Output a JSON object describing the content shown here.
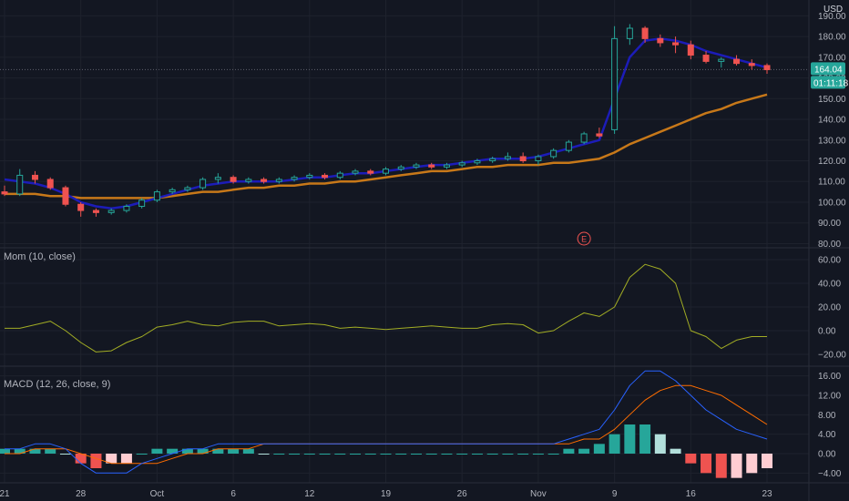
{
  "chart_data": {
    "type": "candlestick",
    "currency": "USD",
    "x_tick_labels": [
      "21",
      "28",
      "Oct",
      "6",
      "12",
      "19",
      "26",
      "Nov",
      "9",
      "16",
      "23"
    ],
    "x_tick_index": [
      0,
      5,
      10,
      15,
      20,
      25,
      30,
      35,
      40,
      45,
      50
    ],
    "price_axis": {
      "range": [
        78,
        195
      ],
      "ticks": [
        190,
        180,
        170,
        160,
        150,
        140,
        130,
        120,
        110,
        100,
        90,
        80
      ],
      "tick_labels": [
        "190.00",
        "180.00",
        "170.00",
        "160.00",
        "150.00",
        "140.00",
        "130.00",
        "120.00",
        "110.00",
        "100.00",
        "90.00",
        "80.00"
      ]
    },
    "last_price": {
      "value": 164.04,
      "label": "164.04",
      "countdown": "01:11:18",
      "color": "#26a69a"
    },
    "candles": [
      [
        105,
        108,
        103,
        104
      ],
      [
        104,
        116,
        103,
        113
      ],
      [
        113,
        115,
        109,
        111
      ],
      [
        111,
        112,
        106,
        107
      ],
      [
        107,
        108,
        98,
        99
      ],
      [
        99,
        100,
        93,
        96
      ],
      [
        96,
        97,
        93,
        95
      ],
      [
        95,
        97,
        94,
        96
      ],
      [
        96,
        99,
        95,
        98
      ],
      [
        98,
        102,
        97,
        101
      ],
      [
        101,
        106,
        100,
        105
      ],
      [
        105,
        107,
        104,
        106
      ],
      [
        106,
        108,
        105,
        107
      ],
      [
        107,
        112,
        106,
        111
      ],
      [
        111,
        114,
        109,
        112
      ],
      [
        112,
        113,
        109,
        110
      ],
      [
        110,
        112,
        109,
        111
      ],
      [
        111,
        112,
        109,
        110
      ],
      [
        110,
        112,
        109,
        111
      ],
      [
        111,
        113,
        110,
        112
      ],
      [
        112,
        114,
        111,
        113
      ],
      [
        113,
        114,
        111,
        112
      ],
      [
        112,
        115,
        111,
        114
      ],
      [
        114,
        116,
        113,
        115
      ],
      [
        115,
        116,
        113,
        114
      ],
      [
        114,
        117,
        113,
        116
      ],
      [
        116,
        118,
        115,
        117
      ],
      [
        117,
        119,
        116,
        118
      ],
      [
        118,
        119,
        116,
        117
      ],
      [
        117,
        119,
        116,
        118
      ],
      [
        118,
        120,
        117,
        119
      ],
      [
        119,
        121,
        118,
        120
      ],
      [
        120,
        122,
        119,
        121
      ],
      [
        121,
        124,
        120,
        122
      ],
      [
        122,
        124,
        119,
        120
      ],
      [
        120,
        123,
        118,
        122
      ],
      [
        122,
        126,
        121,
        125
      ],
      [
        125,
        130,
        124,
        129
      ],
      [
        129,
        134,
        128,
        133
      ],
      [
        133,
        136,
        131,
        132
      ],
      [
        135,
        185,
        133,
        179
      ],
      [
        179,
        186,
        176,
        184
      ],
      [
        184,
        185,
        177,
        179
      ],
      [
        179,
        181,
        175,
        177
      ],
      [
        177,
        180,
        172,
        176
      ],
      [
        176,
        178,
        169,
        171
      ],
      [
        171,
        173,
        167,
        168
      ],
      [
        168,
        170,
        165,
        169
      ],
      [
        169,
        171,
        166,
        167
      ],
      [
        167,
        169,
        164,
        166
      ],
      [
        166,
        167,
        162,
        164
      ]
    ],
    "series": [
      {
        "type": "line",
        "pane": "price",
        "color": "#1c1cb8",
        "values": [
          111,
          110,
          109,
          107,
          104,
          100,
          98,
          97,
          98,
          100,
          102,
          104,
          106,
          108,
          109,
          110,
          110,
          110,
          110,
          111,
          112,
          112,
          113,
          114,
          114,
          115,
          116,
          117,
          118,
          118,
          119,
          120,
          121,
          121,
          121,
          122,
          124,
          126,
          128,
          130,
          150,
          170,
          178,
          179,
          178,
          176,
          173,
          171,
          169,
          167,
          165
        ]
      },
      {
        "type": "line",
        "pane": "price",
        "color": "#c77819",
        "values": [
          104,
          104,
          104,
          103,
          103,
          102,
          102,
          102,
          102,
          102,
          102,
          103,
          104,
          105,
          105,
          106,
          107,
          107,
          108,
          108,
          109,
          109,
          110,
          110,
          111,
          112,
          113,
          114,
          115,
          115,
          116,
          117,
          117,
          118,
          118,
          118,
          119,
          119,
          120,
          121,
          124,
          128,
          131,
          134,
          137,
          140,
          143,
          145,
          148,
          150,
          152
        ]
      },
      {
        "name": "Mom (10, close)",
        "type": "line",
        "pane": "momentum",
        "color": "#a2ad24",
        "values": [
          2,
          2,
          5,
          8,
          0,
          -10,
          -18,
          -17,
          -10,
          -5,
          3,
          5,
          8,
          5,
          4,
          7,
          8,
          8,
          4,
          5,
          6,
          5,
          2,
          3,
          2,
          1,
          2,
          3,
          4,
          3,
          2,
          2,
          5,
          6,
          5,
          -2,
          0,
          8,
          15,
          12,
          20,
          45,
          56,
          52,
          40,
          0,
          -5,
          -15,
          -8,
          -5,
          -5
        ]
      }
    ],
    "momentum_axis": {
      "range": [
        -30,
        70
      ],
      "ticks": [
        60,
        40,
        20,
        0,
        -20
      ],
      "tick_labels": [
        "60.00",
        "40.00",
        "20.00",
        "0.00",
        "−20.00"
      ]
    },
    "macd": {
      "name": "MACD (12, 26, close, 9)",
      "macd_line": {
        "color": "#2962ff",
        "values": [
          1,
          1,
          2,
          2,
          1,
          -2,
          -4,
          -4,
          -4,
          -2,
          -1,
          0,
          1,
          1,
          2,
          2,
          2,
          2,
          2,
          2,
          2,
          2,
          2,
          2,
          2,
          2,
          2,
          2,
          2,
          2,
          2,
          2,
          2,
          2,
          2,
          2,
          2,
          3,
          4,
          5,
          9,
          14,
          17,
          17,
          15,
          12,
          9,
          7,
          5,
          4,
          3
        ]
      },
      "signal_line": {
        "color": "#ff6d00",
        "values": [
          0,
          0,
          1,
          1,
          1,
          0,
          -1,
          -2,
          -2,
          -2,
          -2,
          -1,
          0,
          0,
          1,
          1,
          1,
          2,
          2,
          2,
          2,
          2,
          2,
          2,
          2,
          2,
          2,
          2,
          2,
          2,
          2,
          2,
          2,
          2,
          2,
          2,
          2,
          2,
          3,
          3,
          5,
          8,
          11,
          13,
          14,
          14,
          13,
          12,
          10,
          8,
          6
        ]
      },
      "histogram": {
        "values": [
          1,
          1,
          1,
          1,
          0,
          -2,
          -3,
          -2,
          -2,
          0,
          1,
          1,
          1,
          1,
          1,
          1,
          1,
          0,
          0,
          0,
          0,
          0,
          0,
          0,
          0,
          0,
          0,
          0,
          0,
          0,
          0,
          0,
          0,
          0,
          0,
          0,
          0,
          1,
          1,
          2,
          4,
          6,
          6,
          4,
          1,
          -2,
          -4,
          -5,
          -5,
          -4,
          -3
        ]
      },
      "axis": {
        "range": [
          -6,
          18
        ],
        "ticks": [
          16,
          12,
          8,
          4,
          0,
          -4
        ],
        "tick_labels": [
          "16.00",
          "12.00",
          "8.00",
          "4.00",
          "0.00",
          "−4.00"
        ]
      }
    },
    "event_marker": {
      "label": "E",
      "index": 38,
      "color": "#ef5350"
    },
    "colors": {
      "up": "#26a69a",
      "down": "#ef5350",
      "background": "#131722",
      "grid": "#1e222d",
      "text": "#b2b5be"
    }
  }
}
